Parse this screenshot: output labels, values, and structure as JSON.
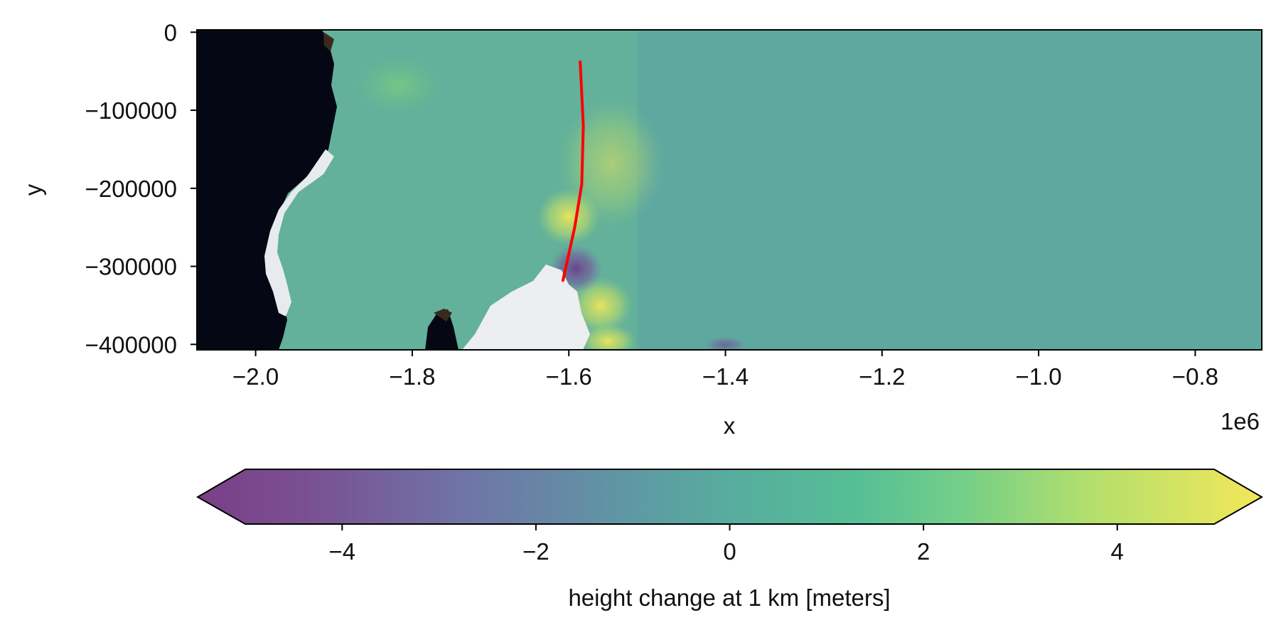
{
  "chart_data": {
    "type": "heatmap",
    "map": {
      "xlabel": "x",
      "ylabel": "y",
      "x_offset_label": "1e6",
      "xlim": [
        -2.075,
        -0.715
      ],
      "ylim": [
        -407000,
        3000
      ],
      "x_ticks": [
        -2.0,
        -1.8,
        -1.6,
        -1.4,
        -1.2,
        -1.0,
        -0.8
      ],
      "x_tick_labels": [
        "−2.0",
        "−1.8",
        "−1.6",
        "−1.4",
        "−1.2",
        "−1.0",
        "−0.8"
      ],
      "y_ticks": [
        0,
        -100000,
        -200000,
        -300000,
        -400000
      ],
      "y_tick_labels": [
        "0",
        "−100000",
        "−200000",
        "−300000",
        "−400000"
      ],
      "background_color": "#5fa8a0",
      "ocean_color": "#050814",
      "flowline": {
        "color": "#ff0000",
        "x": [
          -1.5855,
          -1.5815,
          -1.5835,
          -1.5925,
          -1.6075
        ],
        "y": [
          -38000,
          -120000,
          -195000,
          -250000,
          -318000
        ]
      }
    },
    "colorbar": {
      "label": "height change at 1 km [meters]",
      "range": [
        -5,
        5
      ],
      "extend": "both",
      "ticks": [
        -4,
        -2,
        0,
        2,
        4
      ],
      "tick_labels": [
        "−4",
        "−2",
        "0",
        "2",
        "4"
      ],
      "colormap": "viridis",
      "alpha": 0.75
    }
  }
}
